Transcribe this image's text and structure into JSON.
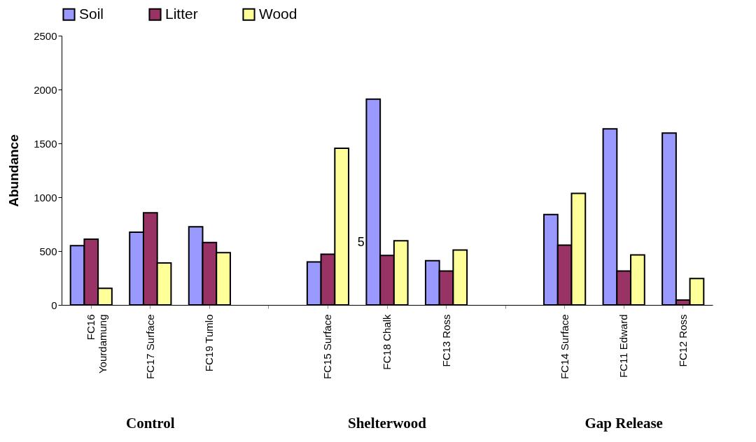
{
  "chart_data": {
    "type": "bar",
    "ylabel": "Abundance",
    "categories": [
      "FC16 Yourdamung",
      "FC17 Surface",
      "FC19 Tumlo",
      null,
      "FC15 Surface",
      "FC18 Chalk",
      "FC13 Ross",
      null,
      "FC14 Surface",
      "FC11 Edward",
      "FC12 Ross"
    ],
    "series": [
      {
        "name": "Soil",
        "color": "#9999ff",
        "values": [
          550,
          675,
          725,
          null,
          400,
          1910,
          410,
          null,
          840,
          1635,
          1595
        ]
      },
      {
        "name": "Litter",
        "color": "#993366",
        "values": [
          610,
          855,
          580,
          null,
          470,
          460,
          315,
          null,
          555,
          315,
          45
        ]
      },
      {
        "name": "Wood",
        "color": "#ffff99",
        "values": [
          155,
          390,
          485,
          null,
          1455,
          595,
          510,
          null,
          1035,
          465,
          245
        ]
      }
    ],
    "ylim": [
      0,
      2500
    ],
    "yticks": [
      0,
      500,
      1000,
      1500,
      2000,
      2500
    ],
    "grid": false,
    "legend": "top",
    "annotations": [
      "Control",
      "Shelterwood",
      "Gap Release",
      "5"
    ]
  }
}
